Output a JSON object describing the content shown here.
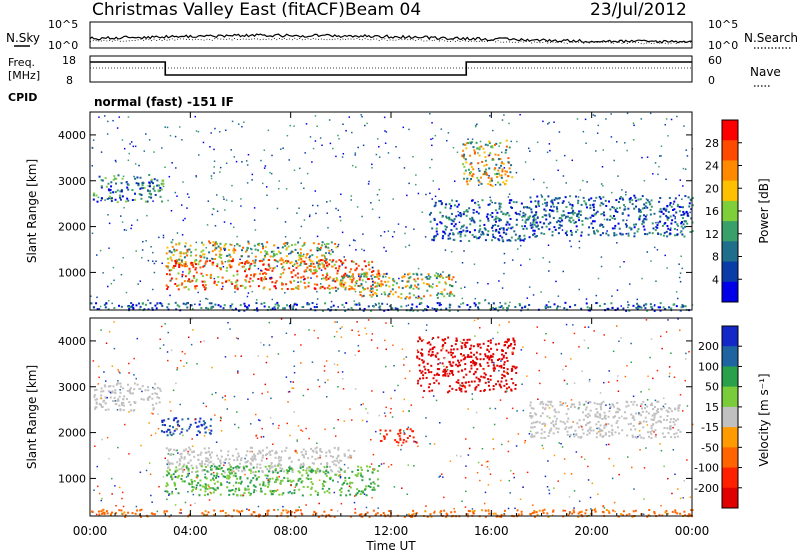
{
  "header": {
    "title": "Christmas Valley East (fitACF)",
    "beam": "Beam 04",
    "date": "23/Jul/2012"
  },
  "strips": {
    "nsky_label": "N.Sky",
    "nsearch_label": "N.Search",
    "noise_ticks": [
      "10^5",
      "10^0"
    ],
    "freq_label_1": "Freq.",
    "freq_label_2": "[MHz]",
    "freq_ticks": [
      "18",
      "8"
    ],
    "nave_label": "Nave",
    "nave_ticks": [
      "60",
      "0"
    ],
    "cpid_label": "CPID",
    "cpid_text": "normal (fast) -151 IF"
  },
  "x_axis": {
    "label": "Time UT",
    "ticks": [
      "00:00",
      "04:00",
      "08:00",
      "12:00",
      "16:00",
      "20:00",
      "00:00"
    ]
  },
  "chart_data": [
    {
      "type": "heatmap",
      "panel": "power",
      "xlabel": "Time UT",
      "ylabel": "Slant Range [km]",
      "xlim": [
        0,
        24
      ],
      "ylim": [
        180,
        4500
      ],
      "y_ticks": [
        1000,
        2000,
        3000,
        4000
      ],
      "colorbar_label": "Power [dB]",
      "colorbar_ticks": [
        "28",
        "24",
        "20",
        "16",
        "12",
        "8",
        "4"
      ],
      "colorbar_colors": [
        "#ff0000",
        "#ff4a00",
        "#ff8a00",
        "#ffc000",
        "#7fcf3a",
        "#3aa06a",
        "#1e6e8c",
        "#0a3ca8",
        "#0000e8"
      ],
      "features": [
        {
          "t0": 0.1,
          "t1": 2.9,
          "r0": 2550,
          "r1": 3150,
          "level": "low-mid"
        },
        {
          "t0": 3.0,
          "t1": 9.8,
          "r0": 1150,
          "r1": 1700,
          "level": "mid"
        },
        {
          "t0": 3.0,
          "t1": 11.5,
          "r0": 650,
          "r1": 1300,
          "level": "high"
        },
        {
          "t0": 9.5,
          "t1": 14.5,
          "r0": 450,
          "r1": 1000,
          "level": "mid"
        },
        {
          "t0": 14.8,
          "t1": 16.8,
          "r0": 2900,
          "r1": 3900,
          "level": "mid"
        },
        {
          "t0": 13.5,
          "t1": 17.5,
          "r0": 1700,
          "r1": 2600,
          "level": "low"
        },
        {
          "t0": 17.5,
          "t1": 24.0,
          "r0": 1800,
          "r1": 2700,
          "level": "low"
        },
        {
          "t0": 0.0,
          "t1": 24.0,
          "r0": 180,
          "r1": 360,
          "level": "low"
        }
      ]
    },
    {
      "type": "heatmap",
      "panel": "velocity",
      "xlabel": "Time UT",
      "ylabel": "Slant Range [km]",
      "xlim": [
        0,
        24
      ],
      "ylim": [
        180,
        4500
      ],
      "y_ticks": [
        1000,
        2000,
        3000,
        4000
      ],
      "colorbar_label": "Velocity [m s⁻¹]",
      "colorbar_ticks": [
        "200",
        "100",
        "50",
        "15",
        "-15",
        "-50",
        "-100",
        "-200"
      ],
      "colorbar_colors": [
        "#1428c8",
        "#1e64a0",
        "#2aa04a",
        "#7acc3a",
        "#c0c0c0",
        "#ff9a00",
        "#ff6400",
        "#ff2000",
        "#e00000"
      ],
      "features": [
        {
          "t0": 0.1,
          "t1": 2.8,
          "r0": 2500,
          "r1": 3100,
          "velocity": 0
        },
        {
          "t0": 2.8,
          "t1": 4.8,
          "r0": 1950,
          "r1": 2350,
          "velocity": 150
        },
        {
          "t0": 3.0,
          "t1": 10.5,
          "r0": 1150,
          "r1": 1700,
          "velocity": 0
        },
        {
          "t0": 3.0,
          "t1": 11.5,
          "r0": 650,
          "r1": 1300,
          "velocity": 30
        },
        {
          "t0": 13.0,
          "t1": 17.0,
          "r0": 2900,
          "r1": 4100,
          "velocity": -200
        },
        {
          "t0": 11.5,
          "t1": 13.0,
          "r0": 1800,
          "r1": 2100,
          "velocity": -150
        },
        {
          "t0": 17.5,
          "t1": 23.5,
          "r0": 1900,
          "r1": 2700,
          "velocity": 0
        },
        {
          "t0": 0.0,
          "t1": 24.0,
          "r0": 180,
          "r1": 340,
          "velocity": -60
        }
      ]
    }
  ]
}
